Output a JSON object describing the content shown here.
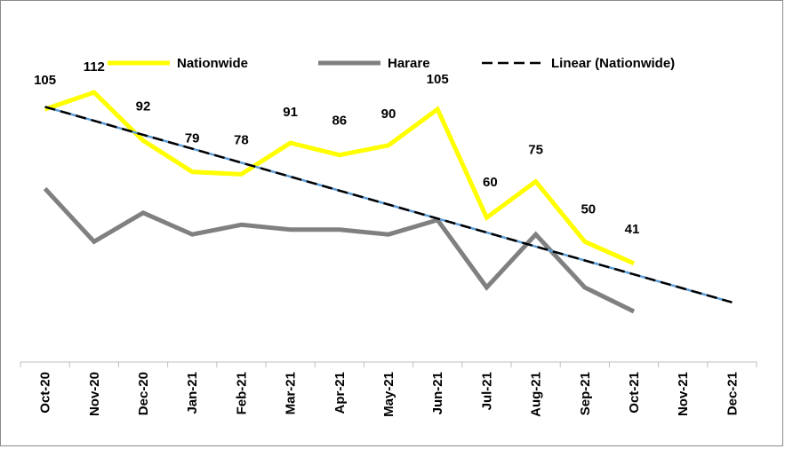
{
  "chart_data": {
    "type": "line",
    "title": "",
    "xlabel": "",
    "ylabel": "",
    "categories": [
      "Oct-20",
      "Nov-20",
      "Dec-20",
      "Jan-21",
      "Feb-21",
      "Mar-21",
      "Apr-21",
      "May-21",
      "Jun-21",
      "Jul-21",
      "Aug-21",
      "Sep-21",
      "Oct-21",
      "Nov-21",
      "Dec-21"
    ],
    "ylim": [
      0,
      150
    ],
    "grid": false,
    "legend_position": "top",
    "series": [
      {
        "name": "Nationwide",
        "color": "#ffff00",
        "values": [
          105,
          112,
          92,
          79,
          78,
          91,
          86,
          90,
          105,
          60,
          75,
          50,
          41,
          null,
          null
        ],
        "data_labels": [
          "105",
          "112",
          "92",
          "79",
          "78",
          "91",
          "86",
          "90",
          "105",
          "60",
          "75",
          "50",
          "41"
        ]
      },
      {
        "name": "Harare",
        "color": "#808080",
        "values": [
          72,
          50,
          62,
          53,
          57,
          55,
          55,
          53,
          59,
          31,
          53,
          31,
          21,
          null,
          null
        ]
      },
      {
        "name": "Linear (Nationwide)",
        "color": "#000000",
        "trend_color": "#5b9bd5",
        "dashed": true,
        "values": [
          106,
          100.2,
          94.4,
          88.6,
          82.8,
          77.0,
          71.2,
          65.4,
          59.6,
          53.8,
          48.0,
          42.2,
          36.4,
          30.6,
          24.8
        ]
      }
    ]
  }
}
